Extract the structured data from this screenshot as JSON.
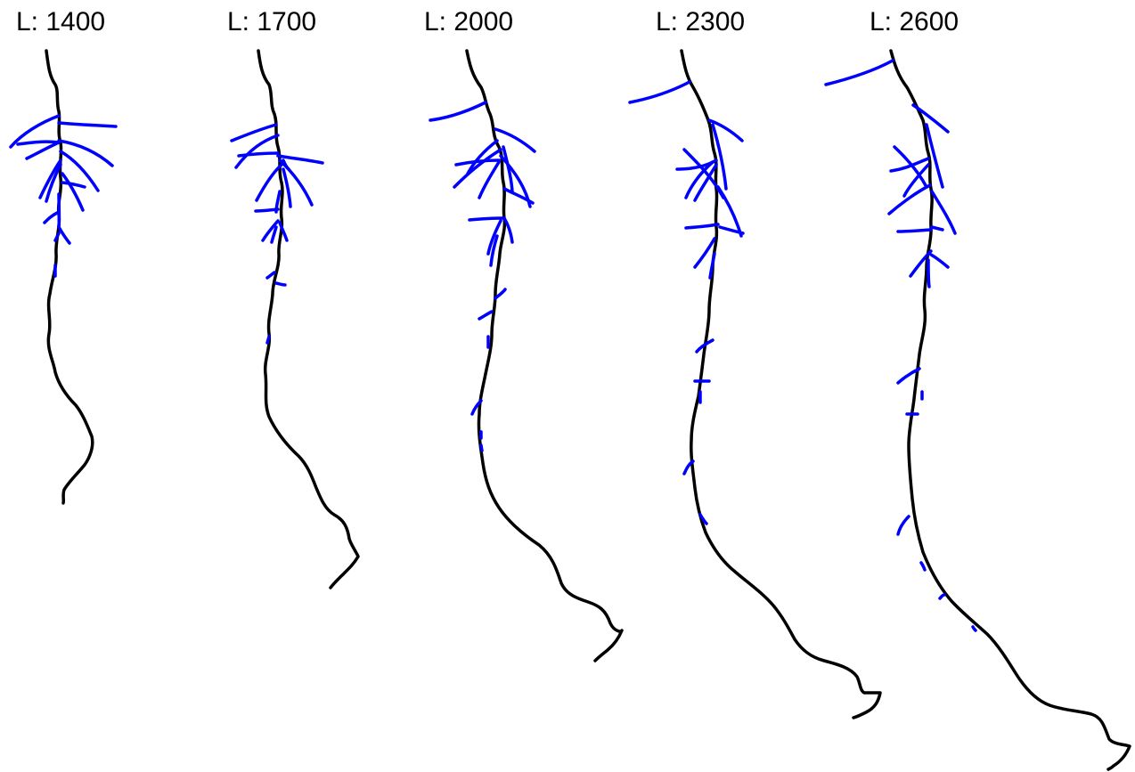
{
  "colors": {
    "primary_root": "#000000",
    "lateral_root": "#0000ff",
    "background": "#ffffff"
  },
  "panels": [
    {
      "label": "L: 1400"
    },
    {
      "label": "L: 1700"
    },
    {
      "label": "L: 2000"
    },
    {
      "label": "L: 2300"
    },
    {
      "label": "L: 2600"
    }
  ]
}
